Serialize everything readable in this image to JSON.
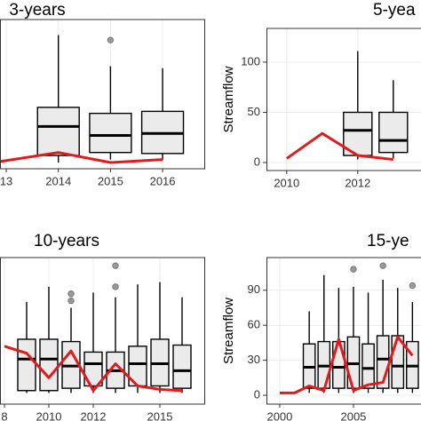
{
  "chart_data": [
    {
      "type": "box",
      "title": "3-years",
      "xlim": [
        2012.88,
        2016.8
      ],
      "ylim": [
        -6.2,
        142.5
      ],
      "xticks": [
        {
          "value": 2013,
          "label": "13"
        },
        2014,
        2015,
        2016
      ],
      "grid": true,
      "boxes": [
        {
          "x": 2014,
          "min": 0,
          "q1": 7,
          "median": 36,
          "q3": 55,
          "max": 127
        },
        {
          "x": 2015,
          "min": 3,
          "q1": 10,
          "median": 27,
          "q3": 49,
          "max": 96,
          "outliers": [
            122
          ]
        },
        {
          "x": 2016,
          "min": 3,
          "q1": 9,
          "median": 29,
          "q3": 51,
          "max": 94
        }
      ],
      "line": {
        "color": "#e31a1c",
        "x": [
          2012.88,
          2014,
          2015,
          2016
        ],
        "values": [
          1,
          10,
          0,
          3
        ]
      }
    },
    {
      "type": "box",
      "title": "5-yea",
      "ylabel": "Streamflow",
      "xlim": [
        2009.43,
        2013.78
      ],
      "ylim": [
        -8,
        133.6
      ],
      "xticks": [
        2010,
        2012
      ],
      "yticks": [
        0,
        50,
        100
      ],
      "grid": true,
      "boxes": [
        {
          "x": 2012,
          "min": 3,
          "q1": 7,
          "median": 32,
          "q3": 50,
          "max": 111
        },
        {
          "x": 2013,
          "min": 4,
          "q1": 10,
          "median": 22,
          "q3": 50,
          "max": 82
        }
      ],
      "line": {
        "color": "#e31a1c",
        "x": [
          2010,
          2011,
          2012,
          2013
        ],
        "values": [
          4,
          29,
          7,
          3
        ]
      }
    },
    {
      "type": "box",
      "title": "10-years",
      "xlim": [
        2007.8,
        2017
      ],
      "ylim": [
        -7.6,
        118
      ],
      "xticks": [
        {
          "value": 2008,
          "label": "8"
        },
        2010,
        2012,
        2015
      ],
      "grid": true,
      "boxes": [
        {
          "x": 2009,
          "min": 2,
          "q1": 4,
          "median": 31,
          "q3": 48,
          "max": 80
        },
        {
          "x": 2010,
          "min": 2,
          "q1": 4,
          "median": 31,
          "q3": 48,
          "max": 93
        },
        {
          "x": 2011,
          "min": 2,
          "q1": 6,
          "median": 25,
          "q3": 46,
          "max": 75,
          "outliers": [
            87,
            81
          ]
        },
        {
          "x": 2012,
          "min": 2,
          "q1": 8,
          "median": 27,
          "q3": 37,
          "max": 88
        },
        {
          "x": 2013,
          "min": 2,
          "q1": 6,
          "median": 21,
          "q3": 37,
          "max": 84,
          "outliers": [
            111,
            93
          ]
        },
        {
          "x": 2014,
          "min": 2,
          "q1": 8,
          "median": 27,
          "q3": 42,
          "max": 95
        },
        {
          "x": 2015,
          "min": 2,
          "q1": 8,
          "median": 27,
          "q3": 48,
          "max": 97
        },
        {
          "x": 2016,
          "min": 2,
          "q1": 6,
          "median": 21,
          "q3": 43,
          "max": 84
        }
      ],
      "line": {
        "color": "#e31a1c",
        "x": [
          2008,
          2009,
          2010,
          2011,
          2012,
          2013,
          2014,
          2015,
          2016
        ],
        "values": [
          42,
          36,
          15,
          38,
          4,
          27,
          8,
          5,
          4
        ]
      }
    },
    {
      "type": "box",
      "title": "15-ye",
      "ylabel": "Streamflow",
      "xlim": [
        1999.1,
        2009.58
      ],
      "ylim": [
        -7.6,
        118
      ],
      "xticks": [
        2000,
        2005
      ],
      "yticks": [
        0,
        30,
        60,
        90
      ],
      "grid": true,
      "boxes": [
        {
          "x": 2002,
          "min": 2,
          "q1": 6,
          "median": 24,
          "q3": 44,
          "max": 72
        },
        {
          "x": 2003,
          "min": 2,
          "q1": 6,
          "median": 25,
          "q3": 46,
          "max": 103
        },
        {
          "x": 2004,
          "min": 2,
          "q1": 6,
          "median": 24,
          "q3": 46,
          "max": 92
        },
        {
          "x": 2005,
          "min": 2,
          "q1": 6,
          "median": 27,
          "q3": 50,
          "max": 93,
          "outliers": [
            108
          ]
        },
        {
          "x": 2006,
          "min": 2,
          "q1": 6,
          "median": 23,
          "q3": 44,
          "max": 88
        },
        {
          "x": 2007,
          "min": 2,
          "q1": 6,
          "median": 31,
          "q3": 51,
          "max": 99,
          "outliers": [
            111
          ]
        },
        {
          "x": 2008,
          "min": 2,
          "q1": 6,
          "median": 25,
          "q3": 51,
          "max": 92
        },
        {
          "x": 2009,
          "min": 2,
          "q1": 6,
          "median": 25,
          "q3": 46,
          "max": 80,
          "outliers": [
            94
          ]
        }
      ],
      "line": {
        "color": "#e31a1c",
        "x": [
          2000,
          2001,
          2002,
          2003,
          2004,
          2005,
          2006,
          2007,
          2008,
          2009
        ],
        "values": [
          2,
          2,
          8,
          4,
          48,
          4,
          9,
          11,
          50,
          34
        ]
      }
    }
  ]
}
